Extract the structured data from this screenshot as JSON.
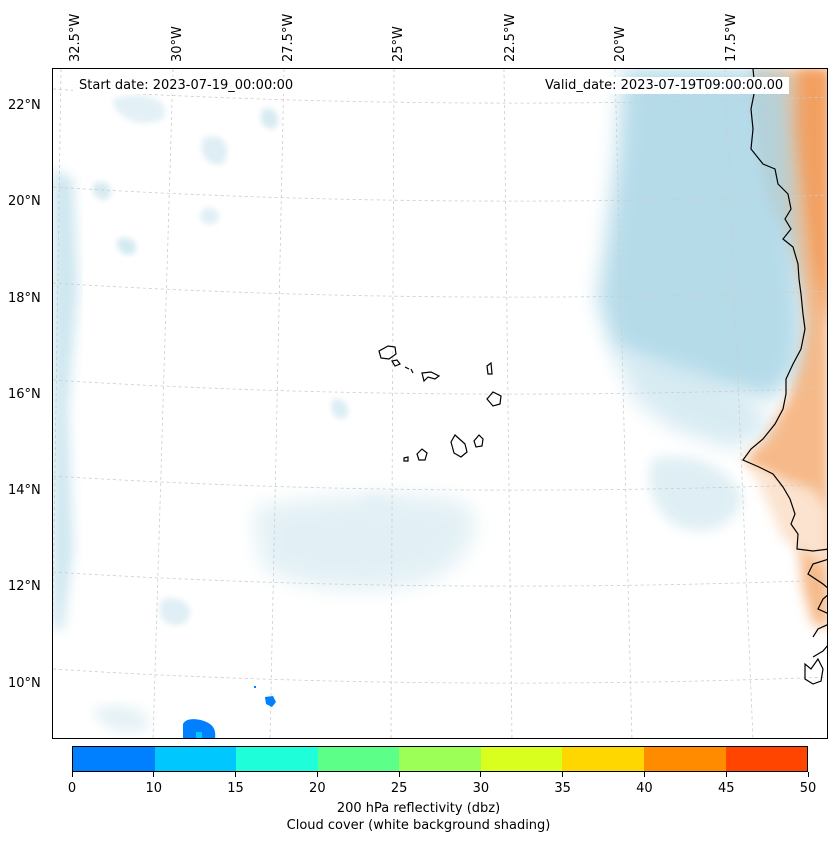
{
  "map": {
    "start_date": "Start date: 2023-07-19_00:00:00",
    "valid_date": "Valid_date: 2023-07-19T09:00:00.00",
    "lat_labels": [
      "22°N",
      "20°N",
      "18°N",
      "16°N",
      "14°N",
      "12°N",
      "10°N"
    ],
    "lon_labels": [
      "32.5°W",
      "30°W",
      "27.5°W",
      "25°W",
      "22.5°W",
      "20°W",
      "17.5°W"
    ]
  },
  "colorbar": {
    "ticks": [
      "0",
      "10",
      "15",
      "20",
      "25",
      "30",
      "35",
      "40",
      "45",
      "50"
    ],
    "colors": [
      "#0080ff",
      "#00c8ff",
      "#1effd9",
      "#5cff88",
      "#9bff58",
      "#d8ff1e",
      "#ffd700",
      "#ff8c00",
      "#ff4500"
    ],
    "caption_line1": "200 hPa reflectivity (dbz)",
    "caption_line2": "Cloud cover (white background shading)"
  }
}
